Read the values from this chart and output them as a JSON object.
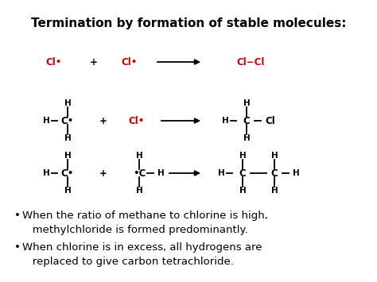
{
  "title": "Termination by formation of stable molecules:",
  "bg_color": "#ffffff",
  "text_color": "#000000",
  "red_color": "#cc0000",
  "bullet1_line1": "When the ratio of methane to chlorine is high,",
  "bullet1_line2": "   methylchloride is formed predominantly.",
  "bullet2_line1": "When chlorine is in excess, all hydrogens are",
  "bullet2_line2": "   replaced to give carbon tetrachloride.",
  "figsize": [
    4.74,
    3.55
  ],
  "dpi": 100
}
